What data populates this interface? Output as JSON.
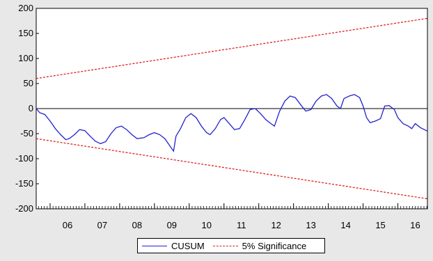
{
  "chart_data": {
    "type": "line",
    "title": "",
    "xlabel": "",
    "ylabel": "",
    "x_ticks": [
      "06",
      "07",
      "08",
      "09",
      "10",
      "11",
      "12",
      "13",
      "14",
      "15",
      "16"
    ],
    "y_ticks": [
      "200",
      "150",
      "100",
      "50",
      "0",
      "-50",
      "-100",
      "-150",
      "-200"
    ],
    "xlim": [
      2005.6,
      2016.85
    ],
    "ylim": [
      -200,
      200
    ],
    "zero_line": true,
    "legend_position": "bottom-center",
    "series": [
      {
        "name": "CUSUM",
        "color": "#2222cc",
        "style": "solid",
        "points": [
          [
            2005.6,
            0
          ],
          [
            2005.7,
            -8
          ],
          [
            2005.85,
            -12
          ],
          [
            2006.0,
            -25
          ],
          [
            2006.15,
            -40
          ],
          [
            2006.3,
            -52
          ],
          [
            2006.45,
            -62
          ],
          [
            2006.55,
            -60
          ],
          [
            2006.7,
            -52
          ],
          [
            2006.85,
            -42
          ],
          [
            2007.0,
            -44
          ],
          [
            2007.15,
            -55
          ],
          [
            2007.3,
            -65
          ],
          [
            2007.45,
            -70
          ],
          [
            2007.6,
            -66
          ],
          [
            2007.75,
            -50
          ],
          [
            2007.9,
            -38
          ],
          [
            2008.05,
            -35
          ],
          [
            2008.2,
            -42
          ],
          [
            2008.35,
            -52
          ],
          [
            2008.5,
            -60
          ],
          [
            2008.7,
            -58
          ],
          [
            2008.85,
            -52
          ],
          [
            2009.0,
            -48
          ],
          [
            2009.15,
            -52
          ],
          [
            2009.3,
            -60
          ],
          [
            2009.45,
            -75
          ],
          [
            2009.55,
            -85
          ],
          [
            2009.62,
            -55
          ],
          [
            2009.75,
            -40
          ],
          [
            2009.9,
            -18
          ],
          [
            2010.05,
            -10
          ],
          [
            2010.2,
            -18
          ],
          [
            2010.35,
            -35
          ],
          [
            2010.5,
            -48
          ],
          [
            2010.6,
            -52
          ],
          [
            2010.75,
            -40
          ],
          [
            2010.9,
            -22
          ],
          [
            2011.0,
            -18
          ],
          [
            2011.15,
            -30
          ],
          [
            2011.3,
            -42
          ],
          [
            2011.45,
            -40
          ],
          [
            2011.6,
            -22
          ],
          [
            2011.75,
            -2
          ],
          [
            2011.9,
            0
          ],
          [
            2012.05,
            -10
          ],
          [
            2012.2,
            -22
          ],
          [
            2012.35,
            -30
          ],
          [
            2012.45,
            -35
          ],
          [
            2012.6,
            -5
          ],
          [
            2012.75,
            15
          ],
          [
            2012.9,
            25
          ],
          [
            2013.05,
            22
          ],
          [
            2013.2,
            8
          ],
          [
            2013.35,
            -5
          ],
          [
            2013.5,
            -2
          ],
          [
            2013.65,
            15
          ],
          [
            2013.8,
            25
          ],
          [
            2013.95,
            28
          ],
          [
            2014.1,
            20
          ],
          [
            2014.25,
            5
          ],
          [
            2014.35,
            0
          ],
          [
            2014.45,
            20
          ],
          [
            2014.6,
            25
          ],
          [
            2014.75,
            28
          ],
          [
            2014.9,
            22
          ],
          [
            2015.0,
            5
          ],
          [
            2015.1,
            -18
          ],
          [
            2015.2,
            -28
          ],
          [
            2015.35,
            -25
          ],
          [
            2015.5,
            -20
          ],
          [
            2015.62,
            5
          ],
          [
            2015.75,
            6
          ],
          [
            2015.9,
            -2
          ],
          [
            2016.0,
            -18
          ],
          [
            2016.15,
            -30
          ],
          [
            2016.3,
            -35
          ],
          [
            2016.4,
            -40
          ],
          [
            2016.5,
            -30
          ],
          [
            2016.65,
            -38
          ],
          [
            2016.85,
            -45
          ]
        ]
      },
      {
        "name": "5% Significance",
        "color": "#dd2222",
        "style": "dashed",
        "points": [
          [
            2005.6,
            60
          ],
          [
            2016.85,
            180
          ]
        ]
      },
      {
        "name": "",
        "color": "#dd2222",
        "style": "dashed",
        "points": [
          [
            2005.6,
            -60
          ],
          [
            2016.85,
            -180
          ]
        ]
      }
    ]
  },
  "legend": {
    "items": [
      {
        "label": "CUSUM"
      },
      {
        "label": "5% Significance"
      }
    ]
  }
}
